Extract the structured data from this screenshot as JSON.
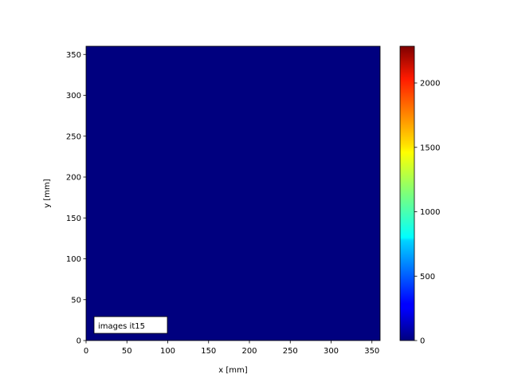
{
  "chart_data": {
    "type": "heatmap",
    "xlabel": "x [mm]",
    "ylabel": "y [mm]",
    "xlim": [
      0,
      360
    ],
    "ylim": [
      0,
      360
    ],
    "xticks": [
      0,
      50,
      100,
      150,
      200,
      250,
      300,
      350
    ],
    "yticks": [
      0,
      50,
      100,
      150,
      200,
      250,
      300,
      350
    ],
    "colormap": "jet",
    "uniform_value": 0,
    "fill_color": "#00007f",
    "annotation": "images it15",
    "annotation_location": "lower-left",
    "colorbar": {
      "range": [
        0,
        2285
      ],
      "ticks": [
        0,
        500,
        1000,
        1500,
        2000
      ]
    }
  }
}
